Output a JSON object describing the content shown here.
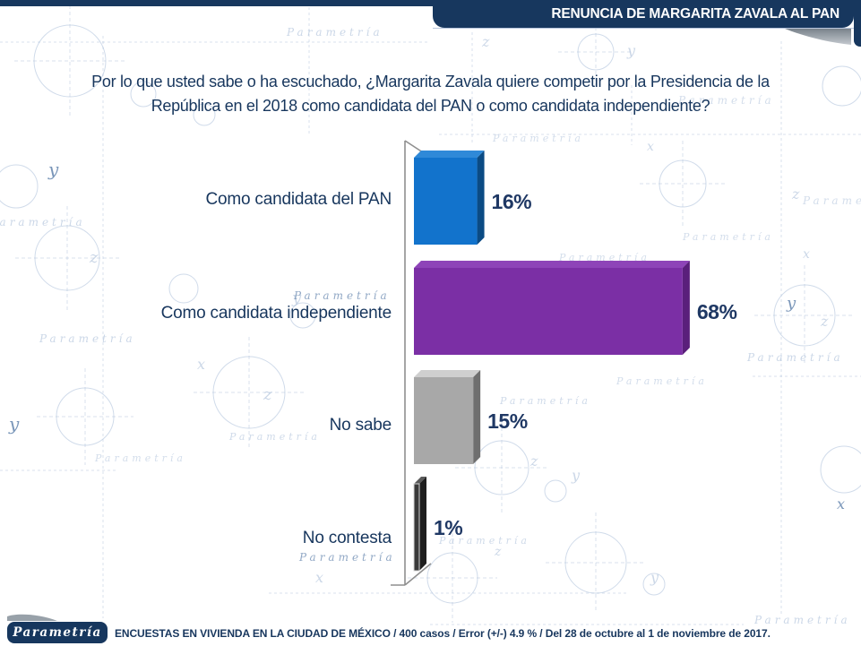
{
  "header": {
    "title": "RENUNCIA DE MARGARITA ZAVALA AL PAN"
  },
  "question": {
    "line1": "Por lo que usted sabe o ha escuchado, ¿Margarita Zavala quiere competir por la Presidencia de la",
    "line2": "República en el 2018 como candidata del PAN o como candidata independiente?"
  },
  "chart_data": {
    "type": "bar",
    "orientation": "horizontal",
    "title": "",
    "categories": [
      "Como candidata del PAN",
      "Como candidata independiente",
      "No sabe",
      "No contesta"
    ],
    "values": [
      16,
      68,
      15,
      1
    ],
    "value_labels": [
      "16%",
      "68%",
      "15%",
      "1%"
    ],
    "unit": "percent",
    "xlim": [
      0,
      100
    ],
    "grid": false,
    "legend": "none",
    "bar_colors": [
      {
        "face": "#1273CC",
        "top": "#2F89D8",
        "side": "#0B4B84"
      },
      {
        "face": "#7B2FA5",
        "top": "#8E44B8",
        "side": "#5A1F7B"
      },
      {
        "face": "#A8A8A8",
        "top": "#CFCFCF",
        "side": "#6F6F6F"
      },
      {
        "face": "#3A3A3A",
        "top": "#5A5A5A",
        "side": "#1E1E1E"
      }
    ]
  },
  "footer": {
    "logo_text": "Parametría",
    "source": "ENCUESTAS EN VIVIENDA EN LA CIUDAD DE MÉXICO / 400 casos / Error (+/-) 4.9 % / Del 28 de octubre al 1 de noviembre de 2017."
  },
  "watermark": {
    "text": "Parametría",
    "letters": [
      "x",
      "y",
      "z"
    ]
  },
  "colors": {
    "header_navy": "#17375E",
    "title_text": "#FFFFFF",
    "question_text": "#17365D",
    "value_text": "#1F3864",
    "axis_gray": "#8F8F8F",
    "watermark_blue": "#A9BDD8",
    "watermark_dark_blue": "#6384AD",
    "swoosh_gray": "#98A1A9",
    "footer_text": "#17365D"
  }
}
